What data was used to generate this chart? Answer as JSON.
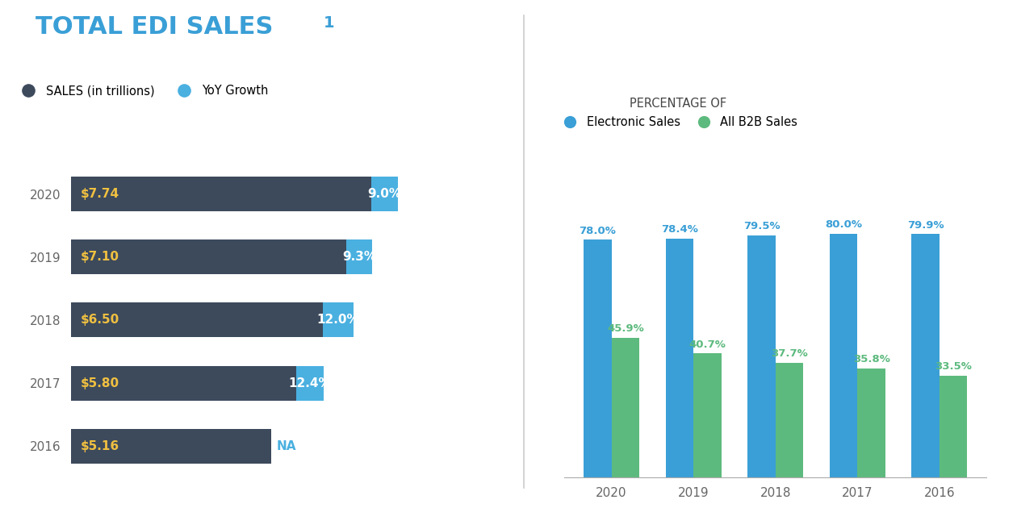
{
  "title": "TOTAL EDI SALES",
  "title_superscript": "1",
  "background_color": "#ffffff",
  "left_panel": {
    "years": [
      "2020",
      "2019",
      "2018",
      "2017",
      "2016"
    ],
    "sales": [
      7.74,
      7.1,
      6.5,
      5.8,
      5.16
    ],
    "sales_labels": [
      "$7.74",
      "$7.10",
      "$6.50",
      "$5.80",
      "$5.16"
    ],
    "growth": [
      9.0,
      9.3,
      12.0,
      12.4,
      null
    ],
    "growth_labels": [
      "9.0%",
      "9.3%",
      "12.0%",
      "12.4%",
      "NA"
    ],
    "bar_color_dark": "#3d4a5c",
    "bar_color_blue": "#4ab0e0",
    "sales_label_color": "#f0c040",
    "legend_sales_color": "#3d4a5c",
    "legend_growth_color": "#4ab0e0"
  },
  "right_panel": {
    "years": [
      "2020",
      "2019",
      "2018",
      "2017",
      "2016"
    ],
    "electronic_sales": [
      78.0,
      78.4,
      79.5,
      80.0,
      79.9
    ],
    "b2b_sales": [
      45.9,
      40.7,
      37.7,
      35.8,
      33.5
    ],
    "electronic_color": "#3a9fd6",
    "b2b_color": "#5dba7e",
    "electronic_label_color": "#3a9fd6",
    "b2b_label_color": "#5dba7e",
    "legend_text": "PERCENTAGE OF",
    "legend_electronic": "Electronic Sales",
    "legend_b2b": "All B2B Sales"
  }
}
